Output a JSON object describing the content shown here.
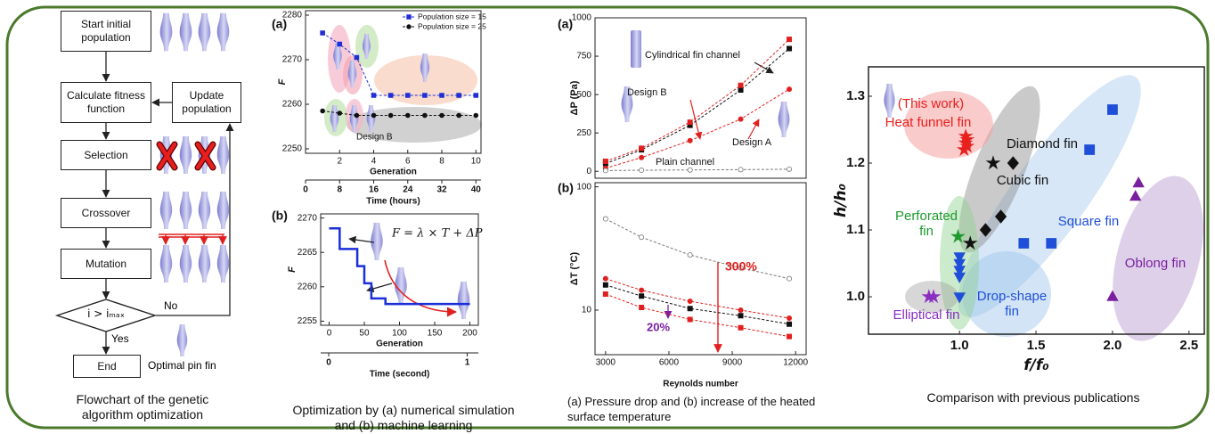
{
  "flowchart": {
    "nodes": [
      {
        "label": "Start initial population"
      },
      {
        "label": "Calculate fitness function"
      },
      {
        "label": "Selection"
      },
      {
        "label": "Crossover"
      },
      {
        "label": "Mutation"
      },
      {
        "label": "i > iₘₐₓ"
      },
      {
        "label": "End"
      },
      {
        "label": "Update population"
      }
    ],
    "edge_labels": [
      "No",
      "Yes"
    ],
    "image_label": "Optimal pin fin"
  },
  "captions": [
    "Flowchart of the genetic algorithm optimization",
    "Optimization by (a) numerical simulation and (b) machine learning",
    "(a) Pressure drop and (b) increase of the heated surface temperature",
    "Comparison with previous publications"
  ],
  "chart_data": [
    {
      "type": "line",
      "panel_label": "(a)",
      "ylabel": "F",
      "xlabel": "Generation",
      "x2label": "Time (hours)",
      "xlim": [
        0,
        10.3
      ],
      "xticks": [
        2,
        4,
        6,
        8,
        10
      ],
      "x2lim": [
        0,
        41.2
      ],
      "x2ticks": [
        0,
        8,
        16,
        24,
        32,
        40
      ],
      "ylim": [
        2249,
        2281
      ],
      "yticks": [
        2250,
        2260,
        2270,
        2280
      ],
      "legend": "upper right",
      "x": [
        1,
        2,
        3,
        4,
        5,
        6,
        7,
        8,
        9,
        10
      ],
      "series": [
        {
          "name": "Population size = 15",
          "color": "#1f2fd8",
          "marker": "square",
          "values": [
            2276,
            2273.5,
            2270.5,
            2262,
            2262,
            2262,
            2262,
            2262,
            2262,
            2262
          ]
        },
        {
          "name": "Population size = 25",
          "color": "#111111",
          "marker": "circle",
          "values": [
            2258.5,
            2258,
            2257.5,
            2257.5,
            2257.5,
            2257.5,
            2257.5,
            2257.5,
            2257.5,
            2257.5
          ]
        }
      ],
      "annotations": [
        "Design B"
      ]
    },
    {
      "type": "step",
      "panel_label": "(b)",
      "ylabel": "F",
      "xlabel": "Generation",
      "x2label": "Time (second)",
      "equation": "F = λ × T + ΔP",
      "xlim": [
        -12,
        212
      ],
      "xticks": [
        0,
        50,
        100,
        150,
        200
      ],
      "x2lim": [
        -0.058,
        1.08
      ],
      "x2ticks": [
        0,
        1
      ],
      "ylim": [
        2254.4,
        2270.6
      ],
      "yticks": [
        2255,
        2260,
        2265,
        2270
      ],
      "x": [
        0,
        15,
        15,
        40,
        40,
        50,
        50,
        60,
        60,
        80,
        80,
        200
      ],
      "series": [
        {
          "color": "#1a2fd8",
          "values": [
            2268.5,
            2268.5,
            2265.5,
            2265.5,
            2263,
            2263,
            2260.5,
            2260.5,
            2258.3,
            2258.3,
            2257.5,
            2257.5
          ]
        }
      ]
    },
    {
      "type": "line",
      "panel_label": "(a)",
      "ylabel": "ΔP (Pa)",
      "xlim": [
        2500,
        12500
      ],
      "ylim": [
        -45,
        1000
      ],
      "yticks": [
        0,
        250,
        500,
        750,
        1000
      ],
      "x": [
        3000,
        4700,
        7000,
        9400,
        11700
      ],
      "series": [
        {
          "name": "Cylindrical fin channel",
          "color": "#111111",
          "marker": "square",
          "values": [
            50,
            140,
            300,
            530,
            800
          ]
        },
        {
          "name": "Design B",
          "color": "#e0201e",
          "marker": "square",
          "values": [
            65,
            150,
            320,
            560,
            860
          ]
        },
        {
          "name": "Design A",
          "color": "#e0201e",
          "marker": "circle",
          "values": [
            20,
            90,
            200,
            340,
            535
          ]
        },
        {
          "name": "Plain channel",
          "color": "#777777",
          "marker": "open-circle",
          "values": [
            5,
            7,
            9,
            11,
            14
          ]
        }
      ]
    },
    {
      "type": "line",
      "panel_label": "(b)",
      "ylabel": "ΔT (°C)",
      "xlabel": "Reynolds number",
      "log_y": true,
      "xlim": [
        2500,
        12500
      ],
      "xticks": [
        3000,
        6000,
        9000,
        12000
      ],
      "ylim": [
        4.35,
        108
      ],
      "yticks": [
        10,
        100
      ],
      "x": [
        3000,
        4700,
        7000,
        9400,
        11700
      ],
      "series": [
        {
          "color": "#777777",
          "marker": "open-circle",
          "values": [
            55,
            39,
            28,
            22,
            18
          ]
        },
        {
          "color": "#e0201e",
          "marker": "circle",
          "values": [
            18,
            14.5,
            11.8,
            10,
            8.6
          ]
        },
        {
          "color": "#111111",
          "marker": "square",
          "values": [
            16,
            13,
            10.3,
            9,
            7.7
          ]
        },
        {
          "color": "#e0201e",
          "marker": "square",
          "values": [
            13.5,
            10.5,
            8.4,
            7.2,
            6.1
          ]
        }
      ],
      "annotations": [
        "300%",
        "20%"
      ]
    },
    {
      "type": "scatter",
      "xlabel": "f/f₀",
      "ylabel": "h/h₀",
      "xlim": [
        0.405,
        2.6
      ],
      "xticks": [
        {
          "value": 1,
          "label": "1.0"
        },
        1.5,
        {
          "value": 2,
          "label": "2.0"
        },
        2.5
      ],
      "ylim": [
        0.944,
        1.344
      ],
      "yticks": [
        {
          "value": 1,
          "label": "1.0"
        },
        1.1,
        1.2,
        1.3
      ],
      "series": [
        {
          "name": "Heat funnel fin",
          "color": "#e8201e",
          "marker": "star",
          "x": [
            1.03,
            1.05,
            1.04,
            1.05,
            1.04
          ],
          "values": [
            1.22,
            1.225,
            1.23,
            1.235,
            1.24
          ]
        },
        {
          "name": "Diamond fin",
          "color": "#111111",
          "marker": "diamond",
          "x": [
            1.35,
            1.27,
            1.17
          ],
          "values": [
            1.2,
            1.12,
            1.1
          ]
        },
        {
          "name": "Cubic fin",
          "color": "#111111",
          "marker": "star",
          "x": [
            1.22,
            1.07
          ],
          "values": [
            1.2,
            1.08
          ]
        },
        {
          "name": "Square fin",
          "color": "#1f4fd8",
          "marker": "square",
          "x": [
            2.0,
            1.85,
            1.42,
            1.6
          ],
          "values": [
            1.28,
            1.22,
            1.08,
            1.08
          ]
        },
        {
          "name": "Perforated fin",
          "color": "#1e9a2e",
          "marker": "star",
          "x": [
            0.99
          ],
          "values": [
            1.09
          ]
        },
        {
          "name": "Drop-shape fin",
          "color": "#1f4fd8",
          "marker": "triangle-down",
          "x": [
            1.0,
            1.0,
            1.0,
            1.0,
            1.0
          ],
          "values": [
            1.06,
            1.05,
            1.04,
            1.03,
            1.0
          ]
        },
        {
          "name": "Oblong fin",
          "color": "#7a1fa0",
          "marker": "triangle-up",
          "x": [
            2.15,
            2.17,
            2.0
          ],
          "values": [
            1.15,
            1.17,
            1.0
          ]
        },
        {
          "name": "Elliptical fin",
          "color": "#8a2fc0",
          "marker": "star",
          "x": [
            0.8,
            0.83
          ],
          "values": [
            1.0,
            1.0
          ]
        }
      ],
      "annotations": [
        "(This work)"
      ]
    }
  ]
}
